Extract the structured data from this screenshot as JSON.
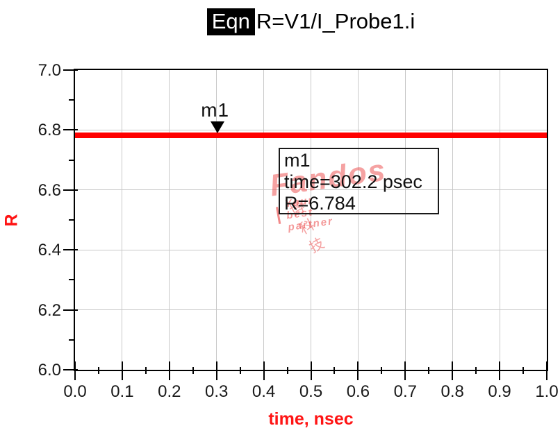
{
  "title": {
    "badge": "Eqn",
    "text": "R=V1/I_Probe1.i"
  },
  "watermark": {
    "brand": "Fandos",
    "tagline": "Your best partner",
    "cjk": "博科技",
    "dash": "一"
  },
  "chart_data": {
    "type": "line",
    "title": "R=V1/I_Probe1.i",
    "xlabel": "time, nsec",
    "ylabel": "R",
    "xlim": [
      0.0,
      1.0
    ],
    "ylim": [
      6.0,
      7.0
    ],
    "grid": true,
    "x_tick_labels": [
      "0.0",
      "0.1",
      "0.2",
      "0.3",
      "0.4",
      "0.5",
      "0.6",
      "0.7",
      "0.8",
      "0.9",
      "1.0"
    ],
    "x_major_ticks": [
      0.0,
      0.1,
      0.2,
      0.3,
      0.4,
      0.5,
      0.6,
      0.7,
      0.8,
      0.9,
      1.0
    ],
    "x_minor_ticks": [
      0.05,
      0.15,
      0.25,
      0.35,
      0.45,
      0.55,
      0.65,
      0.75,
      0.85,
      0.95
    ],
    "y_tick_labels": [
      "6.0",
      "6.2",
      "6.4",
      "6.6",
      "6.8",
      "7.0"
    ],
    "y_major_ticks": [
      6.0,
      6.2,
      6.4,
      6.6,
      6.8,
      7.0
    ],
    "y_minor_ticks": [
      6.1,
      6.3,
      6.5,
      6.7,
      6.9
    ],
    "series": [
      {
        "name": "R",
        "color": "#ff0000",
        "x": [
          0.0,
          1.0
        ],
        "y": [
          6.784,
          6.784
        ]
      }
    ],
    "marker": {
      "id": "m1",
      "label": "m1",
      "time_nsec": 0.3022,
      "value": 6.784,
      "info_lines": [
        "m1",
        "time=302.2 psec",
        "R=6.784"
      ]
    }
  }
}
